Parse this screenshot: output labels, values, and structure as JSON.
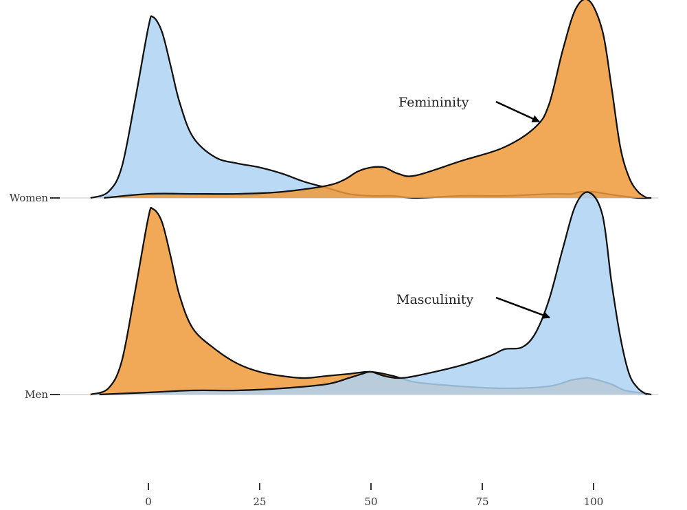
{
  "chart_data": {
    "type": "area",
    "subtype": "ridgeline-density",
    "title": "",
    "xlabel": "",
    "ylabel": "",
    "x_ticks": [
      0,
      25,
      50,
      75,
      100
    ],
    "xlim": [
      -14,
      114
    ],
    "grid": false,
    "legend": "none",
    "colors": {
      "blue": "#aed2f2",
      "orange": "#ee9a3a",
      "outline": "#111111",
      "baseline": "#cccccc"
    },
    "rows": [
      {
        "label": "Women",
        "annotation": "Femininity",
        "series": [
          {
            "color": "blue",
            "x": [
              -13,
              -9,
              -6,
              -3,
              0,
              1,
              3,
              5,
              7,
              10,
              15,
              20,
              25,
              30,
              35,
              40,
              45,
              50,
              55,
              60,
              70,
              80,
              90,
              95,
              97,
              98,
              100,
              103,
              106,
              110,
              113
            ],
            "y": [
              0,
              0.03,
              0.15,
              0.48,
              0.84,
              0.89,
              0.82,
              0.65,
              0.47,
              0.3,
              0.2,
              0.17,
              0.15,
              0.12,
              0.08,
              0.05,
              0.02,
              0.01,
              0.01,
              0.0,
              0.01,
              0.01,
              0.02,
              0.02,
              0.03,
              0.03,
              0.03,
              0.02,
              0.01,
              0.0,
              0
            ]
          },
          {
            "color": "orange",
            "x": [
              -10,
              0,
              10,
              20,
              30,
              40,
              44,
              47,
              50,
              53,
              56,
              60,
              70,
              80,
              87,
              90,
              93,
              96,
              99,
              102,
              104,
              106,
              108,
              110,
              112
            ],
            "y": [
              0,
              0.02,
              0.02,
              0.02,
              0.03,
              0.06,
              0.09,
              0.13,
              0.15,
              0.15,
              0.12,
              0.11,
              0.18,
              0.25,
              0.35,
              0.46,
              0.72,
              0.93,
              0.97,
              0.82,
              0.55,
              0.25,
              0.1,
              0.03,
              0
            ]
          }
        ]
      },
      {
        "label": "Men",
        "annotation": "Masculinity",
        "series": [
          {
            "color": "orange",
            "x": [
              -13,
              -9,
              -6,
              -3,
              0,
              1,
              3,
              5,
              7,
              10,
              15,
              20,
              25,
              30,
              35,
              40,
              45,
              50,
              55,
              60,
              70,
              80,
              90,
              95,
              98,
              99,
              101,
              104,
              107,
              110,
              113
            ],
            "y": [
              0,
              0.03,
              0.16,
              0.5,
              0.86,
              0.9,
              0.84,
              0.67,
              0.48,
              0.32,
              0.22,
              0.15,
              0.11,
              0.09,
              0.08,
              0.09,
              0.1,
              0.11,
              0.09,
              0.06,
              0.04,
              0.03,
              0.04,
              0.07,
              0.08,
              0.08,
              0.07,
              0.05,
              0.02,
              0.01,
              0
            ]
          },
          {
            "color": "blue",
            "x": [
              -11,
              0,
              10,
              20,
              30,
              40,
              45,
              48,
              50,
              53,
              56,
              60,
              70,
              77,
              80,
              84,
              87,
              90,
              93,
              96,
              99,
              102,
              104,
              106,
              108,
              110,
              112
            ],
            "y": [
              0,
              0.01,
              0.02,
              0.02,
              0.03,
              0.05,
              0.08,
              0.1,
              0.11,
              0.09,
              0.08,
              0.09,
              0.14,
              0.19,
              0.22,
              0.23,
              0.3,
              0.46,
              0.7,
              0.92,
              0.98,
              0.87,
              0.55,
              0.28,
              0.1,
              0.03,
              0
            ]
          }
        ]
      }
    ]
  }
}
